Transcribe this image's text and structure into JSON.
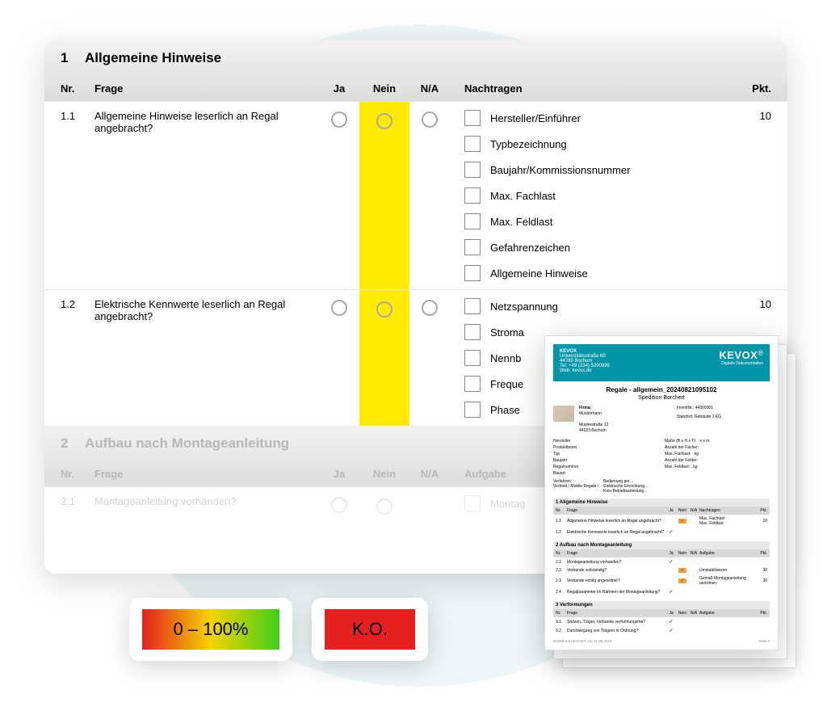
{
  "colors": {
    "bg_circle": "#eef6f8",
    "section_header_bg": "linear-gradient(#f2f2f2,#e6e6e6)",
    "col_header_bg": "linear-gradient(#e6e6e6,#dcdcdc)",
    "highlight_yellow": "#ffeb00",
    "badge_gradient": "linear-gradient(to right, #e42020, #f5d400, #3fcf1b)",
    "badge_ko": "#e42020",
    "report_header": "#0095a8",
    "report_sec_bg": "#e8e8e8",
    "report_rowh_bg": "#d8d8d8",
    "report_hl": "#f7a13a"
  },
  "sections": [
    {
      "num": "1",
      "title": "Allgemeine Hinweise",
      "nach_label": "Nachtragen",
      "faded": false,
      "rows": [
        {
          "nr": "1.1",
          "frage": "Allgemeine Hinweise leserlich an Regal angebracht?",
          "pkt": "10",
          "highlight_nein": true,
          "show_na": true,
          "nachtragen": [
            "Hersteller/Einführer",
            "Typbezeichnung",
            "Baujahr/Kommissionsnummer",
            "Max. Fachlast",
            "Max. Feldlast",
            "Gefahrenzeichen",
            "Allgemeine Hinweise"
          ]
        },
        {
          "nr": "1.2",
          "frage": "Elektrische Kennwerte leserlich an Regal angebracht?",
          "pkt": "10",
          "highlight_nein": true,
          "show_na": true,
          "nachtragen": [
            "Netzspannung",
            "Stroma",
            "Nennb",
            "Freque",
            "Phase"
          ]
        }
      ]
    },
    {
      "num": "2",
      "title": "Aufbau nach Montageanleitung",
      "nach_label": "Aufgabe",
      "faded": true,
      "rows": [
        {
          "nr": "2.1",
          "frage": "Montageanleitung vorhanden?",
          "pkt": "",
          "highlight_nein": false,
          "show_na": false,
          "nachtragen": [
            "Montag"
          ]
        }
      ]
    }
  ],
  "headers": {
    "nr": "Nr.",
    "frage": "Frage",
    "ja": "Ja",
    "nein": "Nein",
    "na": "N/A",
    "pkt": "Pkt."
  },
  "badges": {
    "range": "0 – 100%",
    "ko": "K.O."
  },
  "report": {
    "brand": "KEVOX",
    "brand_sub": "Digitale Dokumentation",
    "company_lines": [
      "KEVOX",
      "Universitätsstraße 60",
      "44789 Bochum",
      "Tel: +49 (234) 5200999",
      "Web: kevox.de"
    ],
    "title": "Regale - allgemein_20240821095102",
    "subtitle": "Spedition Borchert",
    "firma_label": "Firma:",
    "firma_lines": [
      "Mustermann",
      "",
      "Musterstraße 12",
      "44123 Bochum"
    ],
    "inventar_label": "InventNr.:",
    "inventar": "44300001",
    "standort_label": "Standort:",
    "standort": "Gebäude 1 EG",
    "spec_left_labels": [
      "Hersteller",
      "Produktbezei",
      "Typ",
      "Baujahr",
      "Regalnummer",
      "Bauart"
    ],
    "spec_right": [
      [
        "Maße (B x H x T):",
        "x  x  m"
      ],
      [
        "Anzahl der Fächer:",
        ""
      ],
      [
        "Max. Fachlast:",
        "kg"
      ],
      [
        "Anzahl der Felder:",
        ""
      ],
      [
        "Max. Feldlast:",
        "kg"
      ]
    ],
    "verfahren_label": "Verfahren:",
    "verfahren_lines": [
      "Vertrieb / Mobile Regale /",
      "Bedienung per…",
      "Elektrische Einrichtung…",
      "Kein Betriebsanleitung…"
    ],
    "sections": [
      {
        "num": "1",
        "title": "Allgemeine Hinweise",
        "rows": [
          {
            "nr": "1.1",
            "f": "Allgemeine Hinweise leserlich an Regal angebracht?",
            "ja": false,
            "nein": true,
            "hl": true,
            "nt": "Max. Fachlast\nMax. Feldlast",
            "p": "10"
          },
          {
            "nr": "1.2",
            "f": "Elektrische Kennwerte leserlich an Regal angebracht?",
            "ja": true,
            "nein": false,
            "hl": false,
            "nt": "",
            "p": ""
          }
        ]
      },
      {
        "num": "2",
        "title": "Aufbau nach Montageanleitung",
        "rows": [
          {
            "nr": "2.1",
            "f": "Montageanleitung vorhanden?",
            "ja": true,
            "nein": false,
            "hl": false,
            "nt": "",
            "p": ""
          },
          {
            "nr": "2.2",
            "f": "Verbände vollständig?",
            "ja": false,
            "nein": true,
            "hl": true,
            "nt": "Umstabilisieren",
            "p": "30"
          },
          {
            "nr": "2.3",
            "f": "Verbände richtig angeordnet?",
            "ja": false,
            "nein": true,
            "hl": true,
            "nt": "Gemäß Montageanleitung anordnen",
            "p": "30"
          },
          {
            "nr": "2.4",
            "f": "Regalparameter im Rahmen der Montageanleitung?",
            "ja": true,
            "nein": false,
            "hl": false,
            "nt": "",
            "p": ""
          }
        ]
      },
      {
        "num": "3",
        "title": "Verformungen",
        "rows": [
          {
            "nr": "3.1",
            "f": "Stützen, Träger, Verbände verformungsfrei?",
            "ja": true,
            "nein": false,
            "hl": false,
            "nt": "",
            "p": ""
          },
          {
            "nr": "3.2",
            "f": "Durchbiegung von Trägern in Ordnung?",
            "ja": true,
            "nein": false,
            "hl": false,
            "nt": "",
            "p": ""
          }
        ]
      }
    ],
    "footer_left": "Erstellt mit KEVOX® am 21.08.2024",
    "footer_right": "Seite 2"
  }
}
